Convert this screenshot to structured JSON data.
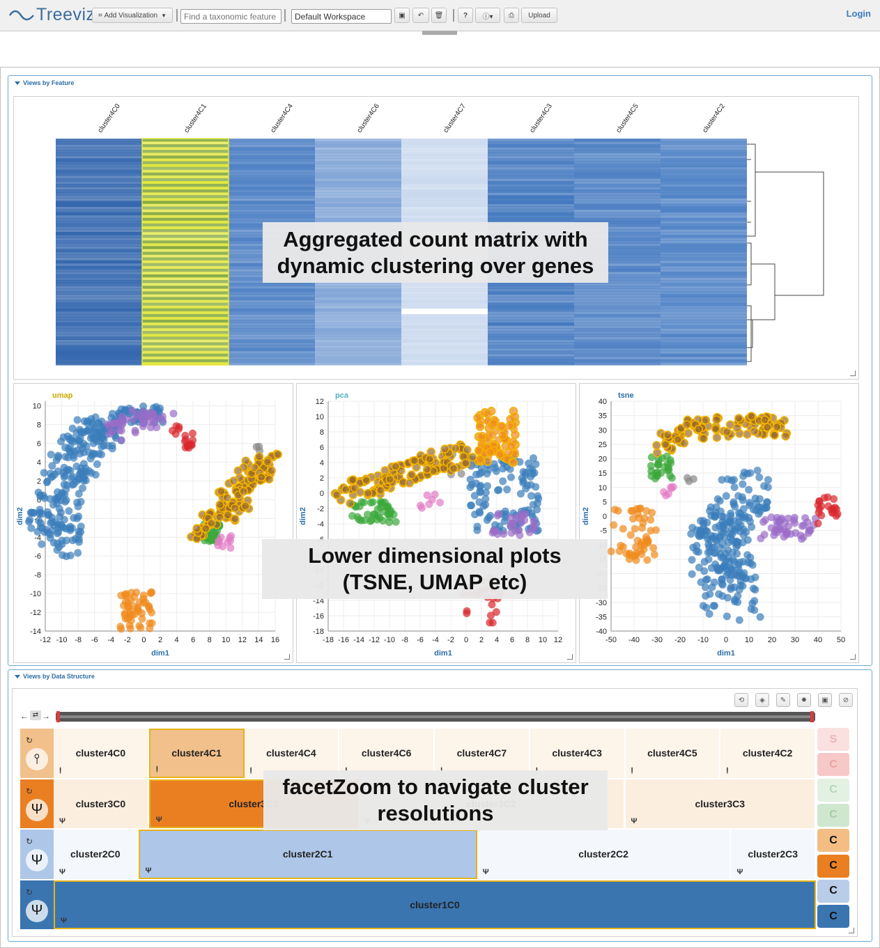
{
  "app": {
    "name": "Treeviz",
    "login": "Login"
  },
  "toolbar": {
    "add_visualization": "Add Visualization",
    "search_placeholder": "Find a taxonomic feature",
    "workspace": "Default Workspace",
    "upload": "Upload"
  },
  "sections": {
    "features": "Views by Feature",
    "data_structure": "Views by Data Structure"
  },
  "heatmap": {
    "columns": [
      "cluster4C0",
      "cluster4C1",
      "cluster4C4",
      "cluster4C6",
      "cluster4C7",
      "cluster4C3",
      "cluster4C5",
      "cluster4C2"
    ],
    "column_colors": [
      "#2f63ac",
      "#7fa33f",
      "#4b7ec3",
      "#7ea3d6",
      "#c9d8ee",
      "#3f75bd",
      "#4a7dc2",
      "#4b7fc4"
    ]
  },
  "captions": {
    "heatmap": [
      "Aggregated count matrix with",
      "dynamic clustering over genes"
    ],
    "plots": [
      "Lower dimensional plots",
      "(TSNE, UMAP etc)"
    ],
    "facetzoom": [
      "facetZoom to navigate cluster",
      "resolutions"
    ]
  },
  "scatter": {
    "umap": {
      "title": "umap",
      "title_color": "#c9a800",
      "xlabel": "dim1",
      "ylabel": "dim2",
      "xticks": [
        "-12",
        "-10",
        "-8",
        "-6",
        "-4",
        "-2",
        "0",
        "2",
        "4",
        "6",
        "8",
        "10",
        "12",
        "14",
        "16"
      ],
      "yticks": [
        "10",
        "8",
        "6",
        "4",
        "2",
        "0",
        "-2",
        "-4",
        "-6",
        "-8",
        "-10",
        "-12",
        "-14"
      ]
    },
    "pca": {
      "title": "pca",
      "title_color": "#4bb3c8",
      "xlabel": "dim1",
      "ylabel": "dim2",
      "xticks": [
        "-18",
        "-16",
        "-14",
        "-12",
        "-10",
        "-8",
        "-6",
        "-4",
        "-2",
        "0",
        "2",
        "4",
        "6",
        "8",
        "10",
        "12"
      ],
      "yticks": [
        "12",
        "10",
        "8",
        "6",
        "4",
        "2",
        "0",
        "-2",
        "-4",
        "-6",
        "-8",
        "-10",
        "-12",
        "-14",
        "-16",
        "-18"
      ]
    },
    "tsne": {
      "title": "tsne",
      "title_color": "#2a6ea6",
      "xlabel": "dim1",
      "ylabel": "dim2",
      "xticks": [
        "-50",
        "-40",
        "-30",
        "-20",
        "-10",
        "0",
        "10",
        "20",
        "30",
        "40",
        "50"
      ],
      "yticks": [
        "40",
        "35",
        "30",
        "25",
        "20",
        "15",
        "10",
        "5",
        "0",
        "-5",
        "-10",
        "-15",
        "-20",
        "-25",
        "-30",
        "-35",
        "-40"
      ]
    }
  },
  "icicle": {
    "rows": [
      {
        "level": 4,
        "handle_color": "#f2c08a",
        "cells": [
          {
            "label": "cluster4C0",
            "bg": "#fdf4ea"
          },
          {
            "label": "cluster4C1",
            "bg": "#f2c08a",
            "selected": true
          },
          {
            "label": "cluster4C4",
            "bg": "#fdf4ea"
          },
          {
            "label": "cluster4C6",
            "bg": "#fdf4ea"
          },
          {
            "label": "cluster4C7",
            "bg": "#fdf4ea"
          },
          {
            "label": "cluster4C3",
            "bg": "#fdf4ea"
          },
          {
            "label": "cluster4C5",
            "bg": "#fdf4ea"
          },
          {
            "label": "cluster4C2",
            "bg": "#fdf4ea"
          }
        ]
      },
      {
        "level": 3,
        "handle_color": "#ea7f22",
        "cells": [
          {
            "label": "cluster3C0",
            "bg": "#fbeedf"
          },
          {
            "label": "cluster3C1",
            "bg": "#ea7f22",
            "selected": true
          },
          {
            "label": "cluster3C2",
            "bg": "#fbeedf"
          },
          {
            "label": "cluster3C3",
            "bg": "#fbeedf"
          }
        ]
      },
      {
        "level": 2,
        "handle_color": "#aec7e8",
        "cells": [
          {
            "label": "cluster2C0",
            "bg": "#f4f7fc"
          },
          {
            "label": "cluster2C1",
            "bg": "#aec7e8",
            "selected": true
          },
          {
            "label": "cluster2C2",
            "bg": "#f4f7fc"
          },
          {
            "label": "cluster2C3",
            "bg": "#f4f7fc"
          }
        ]
      },
      {
        "level": 1,
        "handle_color": "#3a75b0",
        "cells": [
          {
            "label": "cluster1C0",
            "bg": "#3a75b0",
            "selected": true
          }
        ]
      }
    ],
    "side_buttons": [
      {
        "label": "S",
        "bg": "#fbe0e0",
        "fg": "#e7b7b7"
      },
      {
        "label": "C",
        "bg": "#f6c8c8",
        "fg": "#e9a3a3"
      },
      {
        "label": "C",
        "bg": "#e3f1e3",
        "fg": "#b5d6b5"
      },
      {
        "label": "C",
        "bg": "#cfe7cf",
        "fg": "#a6cca6"
      },
      {
        "label": "C",
        "bg": "#f3bd84",
        "fg": "#111111"
      },
      {
        "label": "C",
        "bg": "#ea7f22",
        "fg": "#111111"
      },
      {
        "label": "C",
        "bg": "#b9cde8",
        "fg": "#111111"
      },
      {
        "label": "C",
        "bg": "#3a75b0",
        "fg": "#111111"
      }
    ]
  }
}
